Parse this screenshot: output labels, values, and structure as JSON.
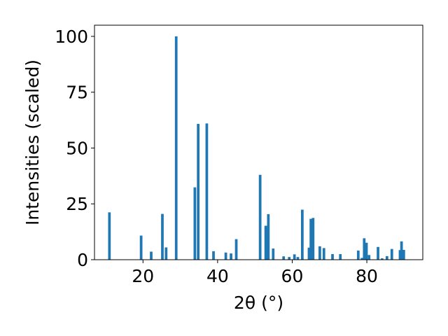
{
  "chart_data": {
    "type": "bar",
    "title": "",
    "xlabel": "2θ (°)",
    "ylabel": "Intensities (scaled)",
    "xlim": [
      7,
      95
    ],
    "ylim": [
      0,
      105
    ],
    "xticks": [
      20,
      40,
      60,
      80
    ],
    "yticks": [
      0,
      25,
      50,
      75,
      100
    ],
    "grid": false,
    "bar_color": "#1f77b4",
    "bar_width": 0.7,
    "x": [
      11.0,
      19.5,
      22.2,
      25.2,
      26.2,
      28.9,
      33.9,
      34.8,
      37.1,
      38.9,
      42.2,
      43.6,
      45.0,
      51.4,
      52.9,
      53.6,
      54.9,
      57.7,
      59.2,
      60.6,
      61.5,
      62.7,
      64.5,
      65.0,
      65.6,
      67.4,
      68.5,
      70.8,
      72.9,
      77.7,
      78.7,
      79.3,
      79.9,
      80.6,
      83.0,
      84.1,
      85.4,
      86.7,
      88.9,
      89.3,
      89.9
    ],
    "values": [
      21.2,
      10.8,
      3.6,
      20.5,
      5.5,
      100.0,
      32.4,
      60.8,
      61.0,
      3.8,
      3.2,
      2.8,
      9.2,
      38.0,
      15.2,
      20.4,
      5.0,
      1.5,
      1.2,
      2.4,
      1.2,
      22.4,
      5.4,
      18.3,
      18.7,
      6.0,
      5.2,
      2.5,
      2.5,
      4.1,
      0.8,
      9.6,
      7.6,
      2.1,
      5.7,
      0.6,
      1.6,
      4.8,
      4.3,
      8.2,
      4.4
    ]
  }
}
